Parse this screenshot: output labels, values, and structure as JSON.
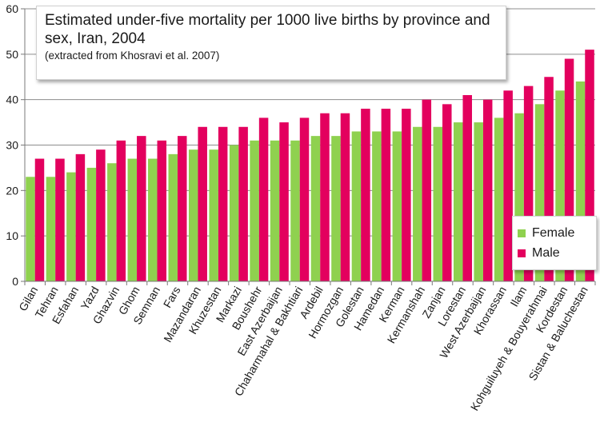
{
  "chart_data": {
    "type": "bar",
    "title": "Estimated under-five mortality per 1000 live births by province and sex, Iran, 2004",
    "subtitle": "(extracted from Khosravi et al. 2007)",
    "xlabel": "",
    "ylabel": "",
    "ylim": [
      0,
      60
    ],
    "yticks": [
      "0",
      "10",
      "20",
      "30",
      "40",
      "50",
      "60"
    ],
    "grid": true,
    "legend_position": "right",
    "categories": [
      "Gilan",
      "Tehran",
      "Esfahan",
      "Yazd",
      "Ghazvin",
      "Ghom",
      "Semnan",
      "Fars",
      "Mazandaran",
      "Khuzestan",
      "Markazi",
      "Boushehr",
      "East Azerbaijan",
      "Chaharmahal & Bakhtiari",
      "Ardebil",
      "Hormozgan",
      "Golestan",
      "Hamedan",
      "Kerman",
      "Kermanshah",
      "Zanjan",
      "Lorestan",
      "West Azerbaijan",
      "Khorassan",
      "Ilam",
      "Kohguiluyeh & Bouyerahmai",
      "Kordestan",
      "Sistan & Baluchestan"
    ],
    "series": [
      {
        "name": "Female",
        "color": "#8fd14f",
        "values": [
          23,
          23,
          24,
          25,
          26,
          27,
          27,
          28,
          29,
          29,
          30,
          31,
          31,
          31,
          32,
          32,
          33,
          33,
          33,
          34,
          34,
          35,
          35,
          36,
          37,
          39,
          42,
          44
        ]
      },
      {
        "name": "Male",
        "color": "#e3005e",
        "values": [
          27,
          27,
          28,
          29,
          31,
          32,
          31,
          32,
          34,
          34,
          34,
          36,
          35,
          36,
          37,
          37,
          38,
          38,
          38,
          40,
          39,
          41,
          40,
          42,
          43,
          45,
          49,
          51
        ]
      }
    ]
  }
}
